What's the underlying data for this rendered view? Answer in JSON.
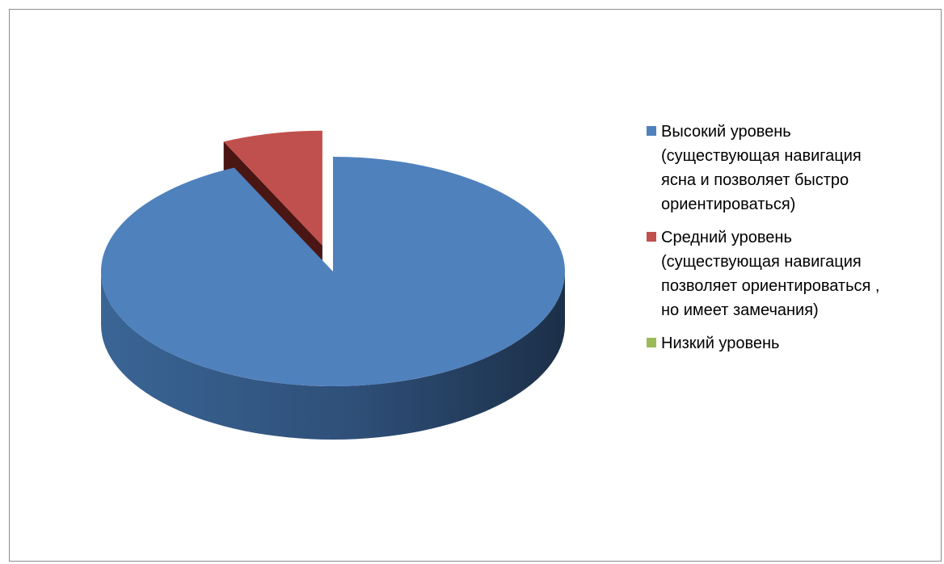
{
  "chart_data": {
    "type": "pie",
    "style": "3d-exploded",
    "series": [
      {
        "name": "Высокий уровень (существующая навигация ясна и позволяет быстро ориентироваться)",
        "value": 93,
        "color": "#4f81bd"
      },
      {
        "name": "Средний уровень (существующая навигация позволяет ориентироваться , но имеет замечания)",
        "value": 7,
        "color": "#c0504d"
      },
      {
        "name": "Низкий уровень",
        "value": 0,
        "color": "#9bbb59"
      }
    ],
    "legend_position": "right"
  }
}
